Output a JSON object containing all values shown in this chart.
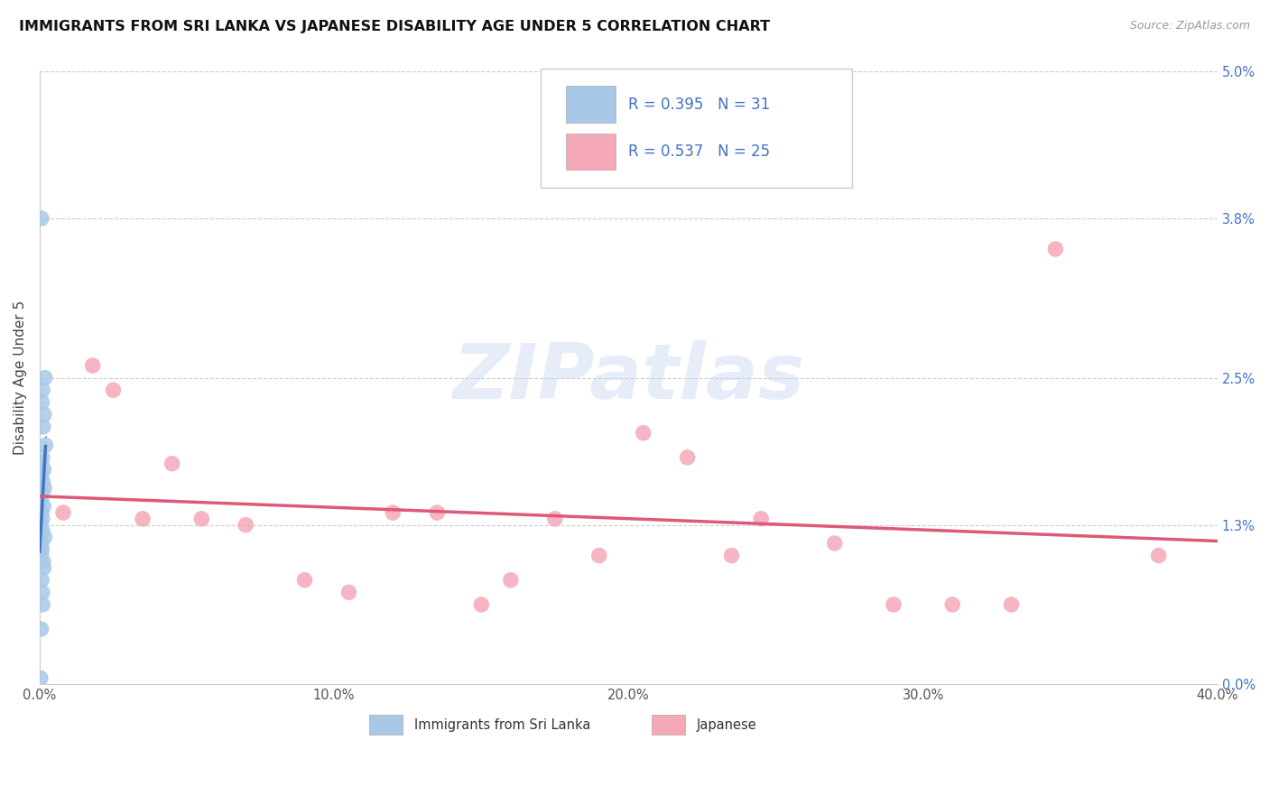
{
  "title": "IMMIGRANTS FROM SRI LANKA VS JAPANESE DISABILITY AGE UNDER 5 CORRELATION CHART",
  "source": "Source: ZipAtlas.com",
  "ylabel": "Disability Age Under 5",
  "x_tick_labels": [
    "0.0%",
    "10.0%",
    "20.0%",
    "30.0%",
    "40.0%"
  ],
  "x_tick_vals": [
    0.0,
    10.0,
    20.0,
    30.0,
    40.0
  ],
  "y_tick_labels": [
    "0.0%",
    "1.3%",
    "2.5%",
    "3.8%",
    "5.0%"
  ],
  "y_tick_vals": [
    0.0,
    1.3,
    2.5,
    3.8,
    5.0
  ],
  "xlim": [
    0.0,
    40.0
  ],
  "ylim": [
    0.0,
    5.0
  ],
  "legend_label1": "Immigrants from Sri Lanka",
  "legend_label2": "Japanese",
  "R1": "0.395",
  "N1": "31",
  "R2": "0.537",
  "N2": "25",
  "color_blue_fill": "#a8c8e8",
  "color_pink_fill": "#f4a8b8",
  "color_blue_line": "#4472c4",
  "color_pink_line": "#e05878",
  "color_blue_text": "#4472c4",
  "color_N_text": "#333333",
  "watermark_color": "#c8d8f0",
  "watermark": "ZIPatlas",
  "blue_dots_x": [
    0.06,
    0.18,
    0.1,
    0.08,
    0.15,
    0.12,
    0.2,
    0.09,
    0.07,
    0.14,
    0.05,
    0.11,
    0.16,
    0.08,
    0.06,
    0.13,
    0.07,
    0.09,
    0.04,
    0.1,
    0.17,
    0.06,
    0.08,
    0.05,
    0.12,
    0.14,
    0.07,
    0.09,
    0.1,
    0.05,
    0.03
  ],
  "blue_dots_y": [
    3.8,
    2.5,
    2.4,
    2.3,
    2.2,
    2.1,
    1.95,
    1.85,
    1.8,
    1.75,
    1.7,
    1.65,
    1.6,
    1.55,
    1.5,
    1.45,
    1.4,
    1.35,
    1.3,
    1.25,
    1.2,
    1.15,
    1.1,
    1.05,
    1.0,
    0.95,
    0.85,
    0.75,
    0.65,
    0.45,
    0.05
  ],
  "pink_dots_x": [
    0.8,
    1.8,
    2.5,
    3.5,
    4.5,
    5.5,
    7.0,
    9.0,
    10.5,
    12.0,
    13.5,
    15.0,
    16.0,
    17.5,
    19.0,
    20.5,
    22.0,
    23.5,
    24.5,
    27.0,
    29.0,
    31.0,
    33.0,
    34.5,
    38.0
  ],
  "pink_dots_y": [
    1.4,
    2.6,
    2.4,
    1.35,
    1.8,
    1.35,
    1.3,
    0.85,
    0.75,
    1.4,
    1.4,
    0.65,
    0.85,
    1.35,
    1.05,
    2.05,
    1.85,
    1.05,
    1.35,
    1.15,
    0.65,
    0.65,
    0.65,
    3.55,
    1.05
  ],
  "title_fontsize": 11.5,
  "axis_label_fontsize": 11,
  "tick_fontsize": 10.5
}
